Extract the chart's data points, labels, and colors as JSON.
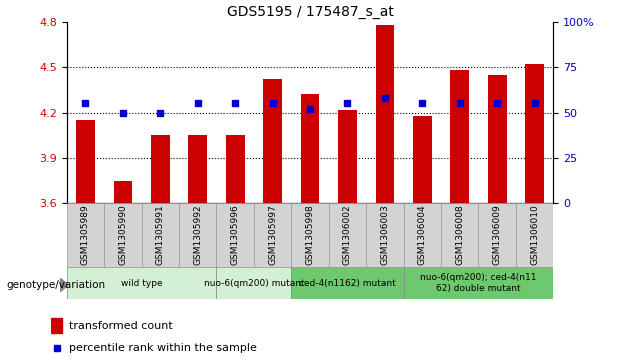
{
  "title": "GDS5195 / 175487_s_at",
  "samples": [
    "GSM1305989",
    "GSM1305990",
    "GSM1305991",
    "GSM1305992",
    "GSM1305996",
    "GSM1305997",
    "GSM1305998",
    "GSM1306002",
    "GSM1306003",
    "GSM1306004",
    "GSM1306008",
    "GSM1306009",
    "GSM1306010"
  ],
  "transformed_count": [
    4.15,
    3.75,
    4.05,
    4.05,
    4.05,
    4.42,
    4.32,
    4.22,
    4.78,
    4.18,
    4.48,
    4.45,
    4.52
  ],
  "percentile_rank": [
    55,
    50,
    50,
    55,
    55,
    55,
    52,
    55,
    58,
    55,
    55,
    55,
    55
  ],
  "ylim_left": [
    3.6,
    4.8
  ],
  "ylim_right": [
    0,
    100
  ],
  "yticks_left": [
    3.6,
    3.9,
    4.2,
    4.5,
    4.8
  ],
  "yticks_right": [
    0,
    25,
    50,
    75,
    100
  ],
  "grid_lines": [
    3.9,
    4.2,
    4.5
  ],
  "bar_color": "#CC0000",
  "dot_color": "#0000CC",
  "bar_baseline": 3.6,
  "groups": [
    {
      "label": "wild type",
      "start": 0,
      "end": 3,
      "color": "#d4f0d4"
    },
    {
      "label": "nuo-6(qm200) mutant",
      "start": 4,
      "end": 5,
      "color": "#d4f0d4"
    },
    {
      "label": "ced-4(n1162) mutant",
      "start": 6,
      "end": 8,
      "color": "#6ec96e"
    },
    {
      "label": "nuo-6(qm200); ced-4(n11\n62) double mutant",
      "start": 9,
      "end": 12,
      "color": "#6ec96e"
    }
  ],
  "xlabel_label": "genotype/variation",
  "legend_items": [
    {
      "color": "#CC0000",
      "label": "transformed count"
    },
    {
      "color": "#0000CC",
      "label": "percentile rank within the sample"
    }
  ],
  "axis_color_left": "#CC0000",
  "axis_color_right": "#0000CC",
  "bg_color": "#ffffff",
  "plot_bg": "#ffffff"
}
